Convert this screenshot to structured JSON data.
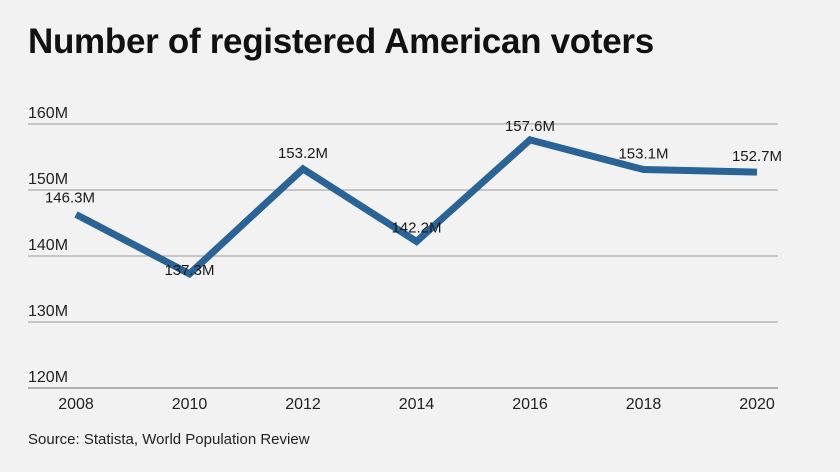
{
  "title": "Number of registered American voters",
  "source": "Source: Statista, World Population Review",
  "colors": {
    "line": "#2a6496",
    "grid": "#9a9a9a",
    "background": "#f1f2f1"
  },
  "chart_data": {
    "type": "line",
    "title": "Number of registered American voters",
    "xlabel": "",
    "ylabel": "",
    "categories": [
      "2008",
      "2010",
      "2012",
      "2014",
      "2016",
      "2018",
      "2020"
    ],
    "series": [
      {
        "values": [
          146.3,
          137.3,
          153.2,
          142.2,
          157.6,
          153.1,
          152.7
        ],
        "labels": [
          "146.3M",
          "137.3M",
          "153.2M",
          "142.2M",
          "157.6M",
          "153.1M",
          "152.7M"
        ]
      }
    ],
    "ylim": [
      120,
      160
    ],
    "yticks": [
      120,
      130,
      140,
      150,
      160
    ],
    "ytick_labels": [
      "120M",
      "130M",
      "140M",
      "150M",
      "160M"
    ],
    "grid": true,
    "legend": "none"
  }
}
